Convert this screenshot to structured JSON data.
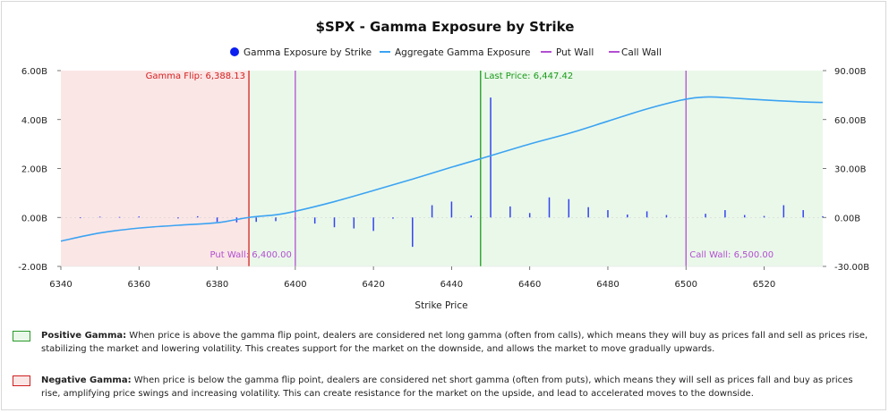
{
  "chart_data": {
    "type": "bar+line",
    "title": "$SPX - Gamma Exposure by Strike",
    "xlabel": "Strike Price",
    "xlim": [
      6340,
      6535
    ],
    "x_ticks": [
      6340,
      6360,
      6380,
      6400,
      6420,
      6440,
      6460,
      6480,
      6500,
      6520
    ],
    "y_left": {
      "lim": [
        -2.0,
        6.0
      ],
      "ticks": [
        "6.00B",
        "4.00B",
        "2.00B",
        "0.00B",
        "-2.00B"
      ],
      "tick_values": [
        6,
        4,
        2,
        0,
        -2
      ],
      "unit": "B"
    },
    "y_right": {
      "lim": [
        -30.0,
        90.0
      ],
      "ticks": [
        "90.00B",
        "60.00B",
        "30.00B",
        "0.00B",
        "-30.00B"
      ],
      "tick_values": [
        90,
        60,
        30,
        0,
        -30
      ],
      "unit": "B"
    },
    "legend": [
      {
        "label": "Gamma Exposure by Strike",
        "marker": "dot",
        "color": "#0a1ff0"
      },
      {
        "label": "Aggregate Gamma Exposure",
        "marker": "line",
        "color": "#3ba3f2"
      },
      {
        "label": "Put Wall",
        "marker": "line",
        "color": "#b24fd0"
      },
      {
        "label": "Call Wall",
        "marker": "line",
        "color": "#b24fd0"
      }
    ],
    "bars": {
      "name": "Gamma Exposure by Strike",
      "color": "#3344ee",
      "x": [
        6345,
        6350,
        6355,
        6360,
        6370,
        6375,
        6380,
        6385,
        6390,
        6395,
        6400,
        6405,
        6410,
        6415,
        6420,
        6425,
        6430,
        6435,
        6440,
        6445,
        6450,
        6455,
        6460,
        6465,
        6470,
        6475,
        6480,
        6485,
        6490,
        6495,
        6505,
        6510,
        6515,
        6520,
        6525,
        6530,
        6535
      ],
      "values": [
        -0.03,
        0.03,
        0.02,
        0.04,
        -0.04,
        0.05,
        -0.18,
        -0.2,
        -0.18,
        -0.15,
        -0.1,
        -0.25,
        -0.4,
        -0.45,
        -0.55,
        -0.05,
        -1.2,
        0.5,
        0.65,
        0.08,
        4.9,
        0.45,
        0.18,
        0.82,
        0.75,
        0.42,
        0.3,
        0.12,
        0.25,
        0.1,
        0.15,
        0.3,
        0.1,
        0.06,
        0.5,
        0.3,
        0.05
      ]
    },
    "aggregate": {
      "name": "Aggregate Gamma Exposure",
      "axis": "right",
      "color": "#3ba3f2",
      "x": [
        6340,
        6350,
        6360,
        6370,
        6380,
        6388.13,
        6395,
        6400,
        6410,
        6420,
        6430,
        6440,
        6447.42,
        6460,
        6470,
        6480,
        6490,
        6500,
        6505,
        6510,
        6520,
        6530,
        6535
      ],
      "y": [
        -14.5,
        -9.5,
        -6.5,
        -4.8,
        -3.2,
        0.0,
        1.6,
        3.8,
        9.7,
        16.5,
        23.5,
        30.8,
        36.0,
        45.0,
        51.5,
        59.0,
        66.5,
        72.5,
        73.8,
        73.5,
        72.0,
        70.8,
        70.5
      ]
    },
    "gamma_flip": {
      "label": "Gamma Flip: 6,388.13",
      "x": 6388.13,
      "color": "#d42020"
    },
    "last_price": {
      "label": "Last Price: 6,447.42",
      "x": 6447.42,
      "color": "#1a9a1a"
    },
    "put_wall": {
      "label": "Put Wall: 6,400.00",
      "x": 6400.0,
      "color": "#b24fd0"
    },
    "call_wall": {
      "label": "Call Wall: 6,500.00",
      "x": 6500.0,
      "color": "#b24fd0"
    },
    "regions": {
      "negative_color": "#fbe6e6",
      "positive_color": "#eaf8ea"
    }
  },
  "notes": {
    "positive": {
      "label": "Positive Gamma:",
      "text": " When price is above the gamma flip point, dealers are considered net long gamma (often from calls), which means they will buy as prices fall and sell as prices rise, stabilizing the market and lowering volatility. This creates support for the market on the downside, and allows the market to move gradually upwards."
    },
    "negative": {
      "label": "Negative Gamma:",
      "text": " When price is below the gamma flip point, dealers are considered net short gamma (often from puts), which means they will sell as prices fall and buy as prices rise, amplifying price swings and increasing volatility. This can create resistance for the market on the upside, and lead to accelerated moves to the downside."
    }
  }
}
